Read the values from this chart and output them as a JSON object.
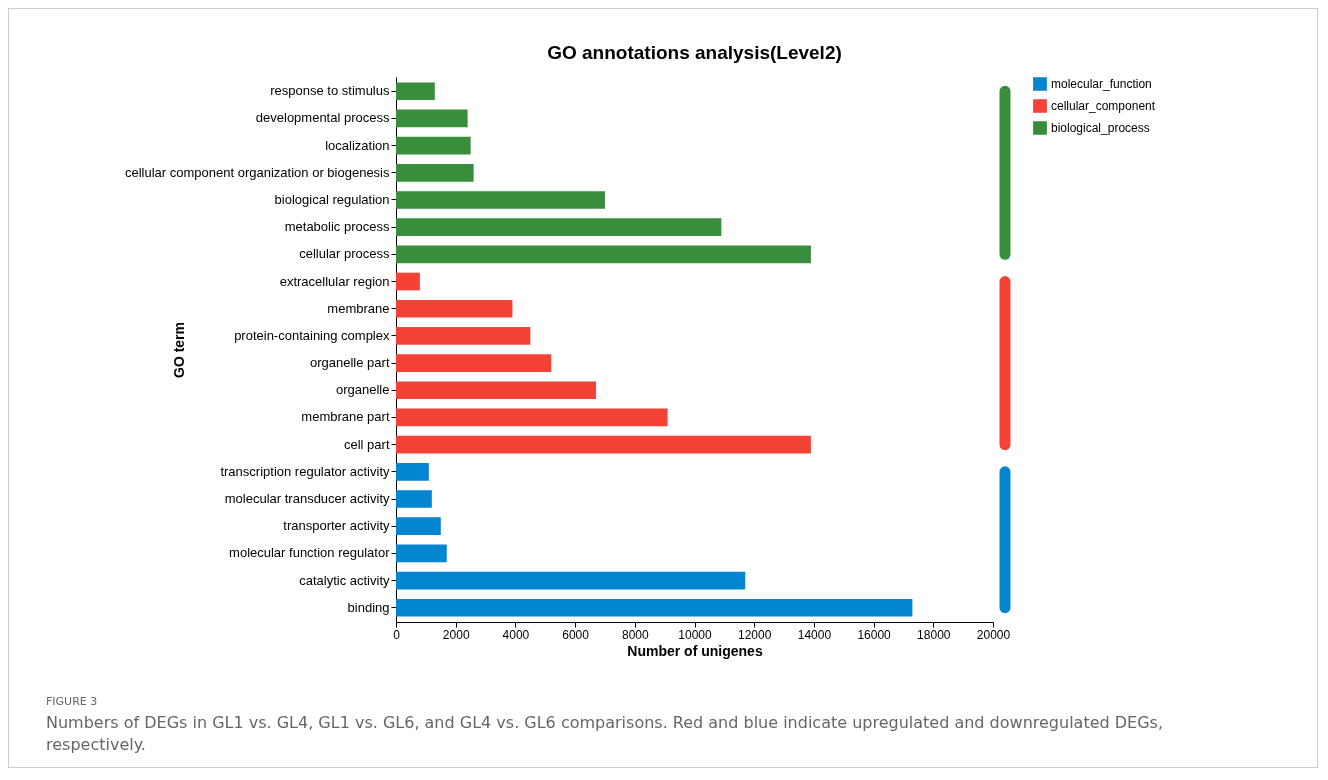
{
  "chart_data": {
    "type": "bar",
    "orientation": "horizontal",
    "title": "GO annotations analysis(Level2)",
    "xlabel": "Number of unigenes",
    "ylabel": "GO term",
    "categories": [
      "response to stimulus",
      "developmental process",
      "localization",
      "cellular component organization or biogenesis",
      "biological regulation",
      "metabolic process",
      "cellular process",
      "extracellular region",
      "membrane",
      "protein-containing complex",
      "organelle part",
      "organelle",
      "membrane part",
      "cell part",
      "transcription regulator activity",
      "molecular transducer activity",
      "transporter activity",
      "molecular function regulator",
      "catalytic activity",
      "binding"
    ],
    "series": [
      {
        "name": "molecular_function",
        "color": "#0385d0",
        "values": [
          null,
          null,
          null,
          null,
          null,
          null,
          null,
          null,
          null,
          null,
          null,
          null,
          null,
          null,
          1100,
          1200,
          1500,
          1700,
          11700,
          17300
        ]
      },
      {
        "name": "cellular_component",
        "color": "#f44336",
        "values": [
          null,
          null,
          null,
          null,
          null,
          null,
          null,
          800,
          3900,
          4500,
          5200,
          6700,
          9100,
          13900,
          null,
          null,
          null,
          null,
          null,
          null
        ]
      },
      {
        "name": "biological_process",
        "color": "#388e3c",
        "values": [
          1300,
          2400,
          2500,
          2600,
          7000,
          10900,
          13900,
          null,
          null,
          null,
          null,
          null,
          null,
          null,
          null,
          null,
          null,
          null,
          null,
          null
        ]
      }
    ],
    "xlim": [
      0,
      20000
    ],
    "xticks": [
      0,
      2000,
      4000,
      6000,
      8000,
      10000,
      12000,
      14000,
      16000,
      18000,
      20000
    ],
    "grid": false,
    "legend": "top right",
    "annotations": [
      "FIGURE 3",
      "Numbers of DEGs in GL1 vs. GL4, GL1 vs. GL6, and GL4 vs. GL6 comparisons. Red and blue indicate upregulated and downregulated DEGs, respectively."
    ]
  }
}
